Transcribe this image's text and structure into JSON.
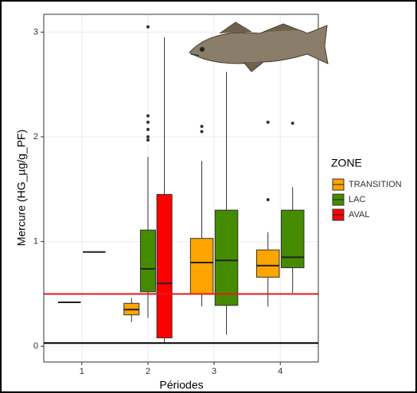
{
  "chart_data": {
    "type": "boxplot",
    "x_label": "Périodes",
    "y_label": "Mercure (HG_µg/g_PF)",
    "legend_title": "ZONE",
    "legend_position": "right",
    "grid": true,
    "categories": [
      "1",
      "2",
      "3",
      "4"
    ],
    "ylim": [
      -0.15,
      3.17
    ],
    "yticks": [
      0,
      1,
      2,
      3
    ],
    "reference_lines": [
      {
        "value": 0.5,
        "color": "#e41a1c"
      },
      {
        "value": 0.03,
        "color": "#000000"
      }
    ],
    "series": [
      {
        "name": "TRANSITION",
        "color": "#ffa500",
        "boxes": [
          {
            "low": 0.42,
            "q1": 0.42,
            "median": 0.42,
            "q3": 0.42,
            "high": 0.42,
            "outliers": []
          },
          {
            "low": 0.23,
            "q1": 0.3,
            "median": 0.35,
            "q3": 0.41,
            "high": 0.46,
            "outliers": []
          },
          {
            "low": 0.38,
            "q1": 0.5,
            "median": 0.8,
            "q3": 1.03,
            "high": 1.77,
            "outliers": [
              2.05,
              2.1
            ]
          },
          {
            "low": 0.38,
            "q1": 0.66,
            "median": 0.77,
            "q3": 0.92,
            "high": 1.09,
            "outliers": [
              1.4,
              2.14
            ]
          }
        ]
      },
      {
        "name": "LAC",
        "color": "#458b00",
        "boxes": [
          {
            "low": 0.9,
            "q1": 0.9,
            "median": 0.9,
            "q3": 0.9,
            "high": 0.9,
            "outliers": []
          },
          {
            "low": 0.27,
            "q1": 0.52,
            "median": 0.74,
            "q3": 1.11,
            "high": 1.81,
            "outliers": [
              1.97,
              2.0,
              2.07,
              2.14,
              2.2,
              3.05
            ]
          },
          {
            "low": 0.11,
            "q1": 0.39,
            "median": 0.82,
            "q3": 1.3,
            "high": 2.62,
            "outliers": []
          },
          {
            "low": 0.51,
            "q1": 0.75,
            "median": 0.85,
            "q3": 1.3,
            "high": 1.52,
            "outliers": [
              2.13
            ]
          }
        ]
      },
      {
        "name": "AVAL",
        "color": "#ff0000",
        "boxes": [
          null,
          {
            "low": 0.03,
            "q1": 0.08,
            "median": 0.6,
            "q3": 1.45,
            "high": 2.95,
            "outliers": []
          },
          null,
          null
        ]
      }
    ]
  }
}
